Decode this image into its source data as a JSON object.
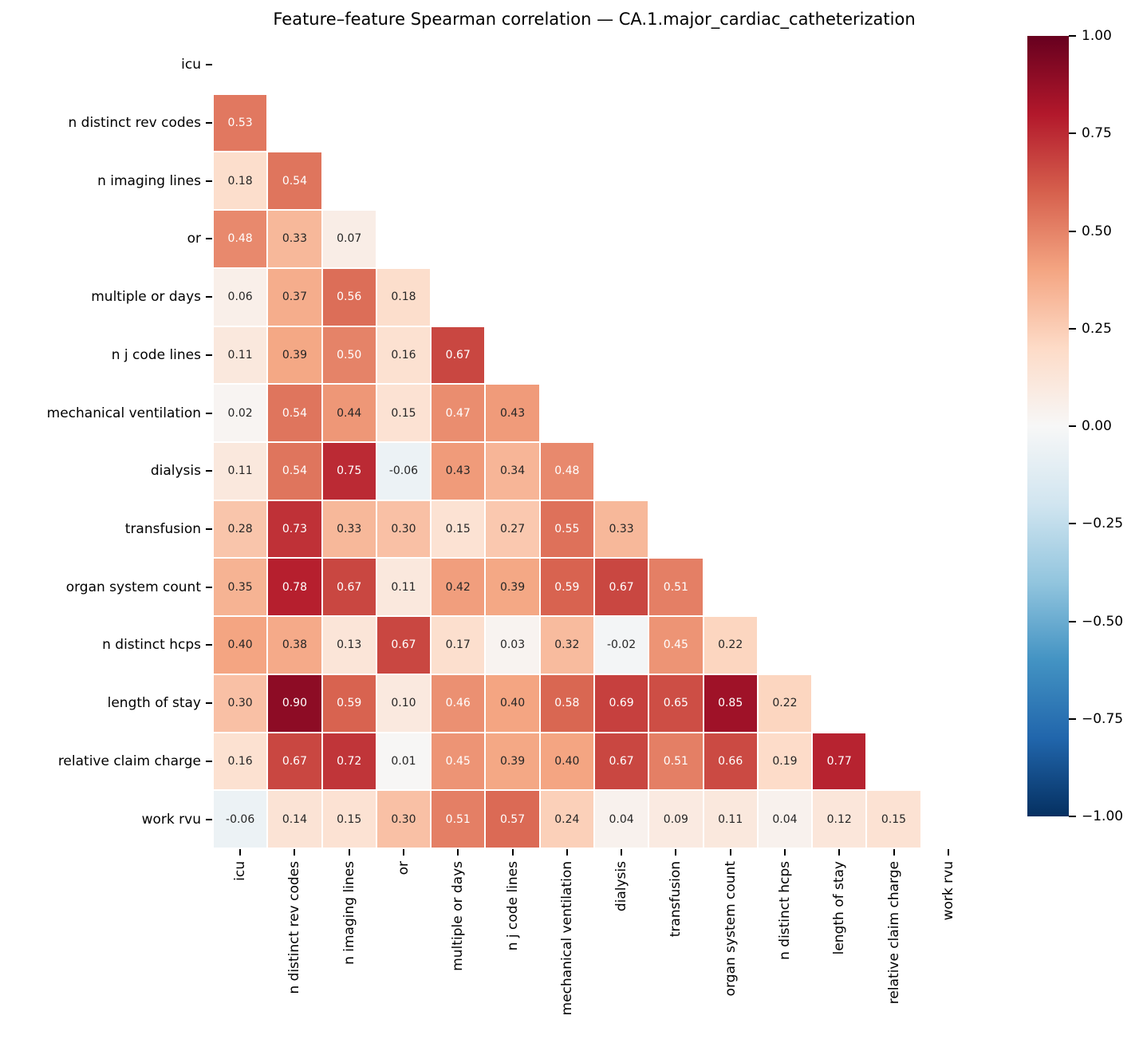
{
  "chart_data": {
    "type": "heatmap",
    "title": "Feature–feature Spearman correlation — CA.1.major_cardiac_catheterization",
    "labels": [
      "icu",
      "n distinct rev codes",
      "n imaging lines",
      "or",
      "multiple or days",
      "n j code lines",
      "mechanical ventilation",
      "dialysis",
      "transfusion",
      "organ system count",
      "n distinct hcps",
      "length of stay",
      "relative claim charge",
      "work rvu"
    ],
    "matrix_lower_triangle": [
      [],
      [
        0.53
      ],
      [
        0.18,
        0.54
      ],
      [
        0.48,
        0.33,
        0.07
      ],
      [
        0.06,
        0.37,
        0.56,
        0.18
      ],
      [
        0.11,
        0.39,
        0.5,
        0.16,
        0.67
      ],
      [
        0.02,
        0.54,
        0.44,
        0.15,
        0.47,
        0.43
      ],
      [
        0.11,
        0.54,
        0.75,
        -0.06,
        0.43,
        0.34,
        0.48
      ],
      [
        0.28,
        0.73,
        0.33,
        0.3,
        0.15,
        0.27,
        0.55,
        0.33
      ],
      [
        0.35,
        0.78,
        0.67,
        0.11,
        0.42,
        0.39,
        0.59,
        0.67,
        0.51
      ],
      [
        0.4,
        0.38,
        0.13,
        0.67,
        0.17,
        0.03,
        0.32,
        -0.02,
        0.45,
        0.22
      ],
      [
        0.3,
        0.9,
        0.59,
        0.1,
        0.46,
        0.4,
        0.58,
        0.69,
        0.65,
        0.85,
        0.22
      ],
      [
        0.16,
        0.67,
        0.72,
        0.01,
        0.45,
        0.39,
        0.4,
        0.67,
        0.51,
        0.66,
        0.19,
        0.77
      ],
      [
        -0.06,
        0.14,
        0.15,
        0.3,
        0.51,
        0.57,
        0.24,
        0.04,
        0.09,
        0.11,
        0.04,
        0.12,
        0.15
      ]
    ],
    "mask": "upper triangle and diagonal hidden",
    "value_format": "0.00",
    "vmin": -1.0,
    "vmax": 1.0,
    "colormap": "RdBu_r",
    "colormap_anchors": [
      "#053061",
      "#2166ac",
      "#4393c3",
      "#92c5de",
      "#d1e5f0",
      "#f7f7f7",
      "#fddbc7",
      "#f4a582",
      "#d6604d",
      "#b2182b",
      "#67001f"
    ],
    "colorbar_tick_labels": [
      "1.00",
      "0.75",
      "0.50",
      "0.25",
      "0.00",
      "−0.25",
      "−0.50",
      "−0.75",
      "−1.00"
    ],
    "colorbar_position": "right",
    "grid": false
  },
  "colors": {
    "background": "#ffffff",
    "cell_grid_line": "#ffffff",
    "annotation_dark": "#262626",
    "annotation_light": "#ffffff",
    "tick_mark": "#000000"
  }
}
